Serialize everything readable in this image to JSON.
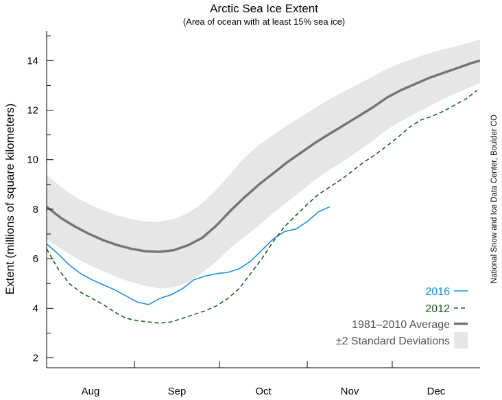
{
  "chart_data": {
    "type": "line",
    "title": "Arctic Sea Ice Extent",
    "subtitle": "(Area of ocean with at least 15% sea ice)",
    "ylabel": "Extent (millions of square kilometers)",
    "xlabel": "",
    "credit": "National Snow and Ice Data Center, Boulder CO",
    "ylim": [
      1.6,
      15.2
    ],
    "xlim": [
      0,
      153
    ],
    "yticks": [
      2,
      4,
      6,
      8,
      10,
      12,
      14
    ],
    "month_labels": [
      {
        "label": "Aug",
        "center": 15.5
      },
      {
        "label": "Sep",
        "center": 46
      },
      {
        "label": "Oct",
        "center": 76.5
      },
      {
        "label": "Nov",
        "center": 107
      },
      {
        "label": "Dec",
        "center": 137.5
      }
    ],
    "month_boundaries": [
      31,
      61,
      92,
      122
    ],
    "legend": [
      {
        "key": "2016",
        "label": "2016",
        "color": "#1a8fe0",
        "style": "solid"
      },
      {
        "key": "2012",
        "label": "2012",
        "color": "#1b5e20",
        "style": "dashed"
      },
      {
        "key": "avg",
        "label": "1981–2010 Average",
        "color": "#757575",
        "style": "thick"
      },
      {
        "key": "band",
        "label": "±2 Standard Deviations",
        "color": "#e6e6e6",
        "style": "box"
      }
    ],
    "average": {
      "name": "1981–2010 Average",
      "color": "#757575",
      "x": [
        0,
        5,
        10,
        15,
        20,
        25,
        30,
        35,
        40,
        45,
        50,
        55,
        60,
        65,
        70,
        75,
        80,
        85,
        90,
        95,
        100,
        105,
        110,
        115,
        120,
        125,
        130,
        135,
        140,
        145,
        150,
        153
      ],
      "y": [
        8.1,
        7.65,
        7.3,
        7.0,
        6.75,
        6.55,
        6.4,
        6.3,
        6.28,
        6.35,
        6.55,
        6.85,
        7.35,
        7.95,
        8.5,
        9.0,
        9.45,
        9.9,
        10.3,
        10.7,
        11.05,
        11.4,
        11.75,
        12.1,
        12.5,
        12.8,
        13.05,
        13.3,
        13.5,
        13.7,
        13.9,
        14.0
      ]
    },
    "std_band": {
      "name": "±2 Standard Deviations",
      "color": "#e6e6e6",
      "x": [
        0,
        5,
        10,
        15,
        20,
        25,
        30,
        35,
        40,
        45,
        50,
        55,
        60,
        65,
        70,
        75,
        80,
        85,
        90,
        95,
        100,
        105,
        110,
        115,
        120,
        125,
        130,
        135,
        140,
        145,
        150,
        153
      ],
      "upper": [
        9.4,
        8.9,
        8.5,
        8.2,
        7.95,
        7.75,
        7.6,
        7.5,
        7.5,
        7.6,
        7.85,
        8.25,
        8.8,
        9.45,
        10.1,
        10.6,
        11.0,
        11.4,
        11.75,
        12.1,
        12.45,
        12.75,
        13.05,
        13.35,
        13.65,
        13.9,
        14.1,
        14.3,
        14.45,
        14.6,
        14.75,
        14.85
      ],
      "lower": [
        6.8,
        6.4,
        6.05,
        5.75,
        5.5,
        5.25,
        5.05,
        4.9,
        4.8,
        4.85,
        5.05,
        5.45,
        5.9,
        6.45,
        6.9,
        7.35,
        7.85,
        8.3,
        8.75,
        9.2,
        9.6,
        9.95,
        10.35,
        10.75,
        11.2,
        11.55,
        11.85,
        12.15,
        12.45,
        12.7,
        12.95,
        13.1
      ]
    },
    "series": [
      {
        "name": "2016",
        "color": "#1a8fe0",
        "dash": "solid",
        "x": [
          0,
          4,
          8,
          12,
          16,
          20,
          24,
          28,
          32,
          36,
          40,
          44,
          48,
          52,
          56,
          60,
          64,
          68,
          72,
          76,
          80,
          84,
          88,
          92,
          96,
          100
        ],
        "y": [
          6.6,
          6.2,
          5.75,
          5.4,
          5.15,
          4.95,
          4.75,
          4.5,
          4.25,
          4.15,
          4.4,
          4.55,
          4.8,
          5.15,
          5.3,
          5.4,
          5.45,
          5.6,
          5.9,
          6.35,
          6.8,
          7.1,
          7.2,
          7.5,
          7.9,
          8.1
        ]
      },
      {
        "name": "2012",
        "color": "#1b5e20",
        "dash": "dashed",
        "x": [
          0,
          4,
          8,
          12,
          16,
          20,
          24,
          28,
          32,
          36,
          40,
          44,
          48,
          52,
          56,
          60,
          64,
          68,
          72,
          76,
          80,
          84,
          88,
          92,
          96,
          100,
          104,
          108,
          112,
          116,
          120,
          124,
          128,
          132,
          136,
          140,
          144,
          148,
          152
        ],
        "y": [
          6.4,
          5.6,
          5.0,
          4.65,
          4.4,
          4.15,
          3.85,
          3.6,
          3.5,
          3.45,
          3.4,
          3.45,
          3.6,
          3.75,
          3.9,
          4.1,
          4.4,
          4.8,
          5.4,
          6.0,
          6.7,
          7.3,
          7.75,
          8.2,
          8.6,
          8.9,
          9.2,
          9.55,
          9.9,
          10.2,
          10.55,
          10.9,
          11.3,
          11.6,
          11.75,
          11.95,
          12.2,
          12.45,
          12.8
        ]
      }
    ]
  }
}
